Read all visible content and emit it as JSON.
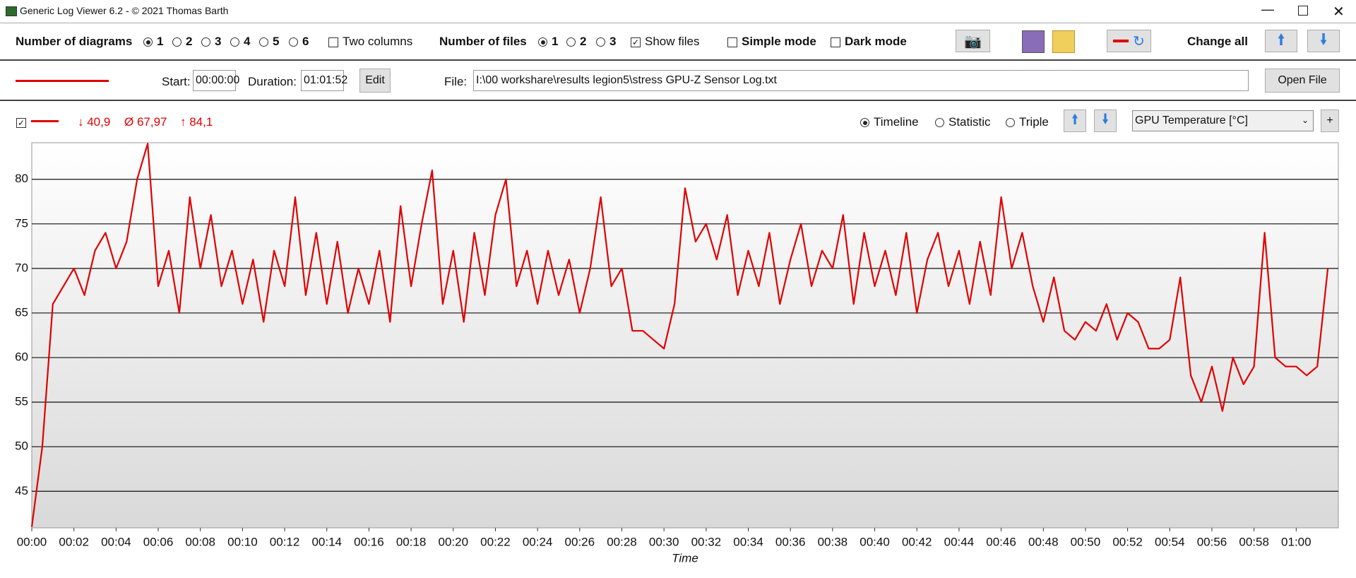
{
  "window": {
    "title": "Generic Log Viewer 6.2 - © 2021 Thomas Barth"
  },
  "toolbar": {
    "diagrams_label": "Number of diagrams",
    "diagram_options": [
      "1",
      "2",
      "3",
      "4",
      "5",
      "6"
    ],
    "two_columns": "Two columns",
    "files_label": "Number of files",
    "file_options": [
      "1",
      "2",
      "3"
    ],
    "show_files": "Show files",
    "simple_mode": "Simple mode",
    "dark_mode": "Dark mode",
    "change_all": "Change all"
  },
  "file_row": {
    "start_label": "Start:",
    "start": "00:00:00",
    "duration_label": "Duration:",
    "duration": "01:01:52",
    "edit": "Edit",
    "file_label": "File:",
    "file_path": "I:\\00 workshare\\results legion5\\stress GPU-Z Sensor Log.txt",
    "open_file": "Open File"
  },
  "chart_header": {
    "min": "↓ 40,9",
    "avg": "Ø 67,97",
    "max": "↑ 84,1",
    "modes": [
      "Timeline",
      "Statistic",
      "Triple"
    ],
    "sensor": "GPU Temperature [°C]",
    "add": "+"
  },
  "chart_data": {
    "type": "line",
    "x_label": "Time",
    "x": [
      0,
      0.5,
      1,
      1.5,
      2,
      2.5,
      3,
      3.5,
      4,
      4.5,
      5,
      5.5,
      6,
      6.5,
      7,
      7.5,
      8,
      8.5,
      9,
      9.5,
      10,
      10.5,
      11,
      11.5,
      12,
      12.5,
      13,
      13.5,
      14,
      14.5,
      15,
      15.5,
      16,
      16.5,
      17,
      17.5,
      18,
      18.5,
      19,
      19.5,
      20,
      20.5,
      21,
      21.5,
      22,
      22.5,
      23,
      23.5,
      24,
      24.5,
      25,
      25.5,
      26,
      26.5,
      27,
      27.5,
      28,
      28.5,
      29,
      29.5,
      30,
      30.5,
      31,
      31.5,
      32,
      32.5,
      33,
      33.5,
      34,
      34.5,
      35,
      35.5,
      36,
      36.5,
      37,
      37.5,
      38,
      38.5,
      39,
      39.5,
      40,
      40.5,
      41,
      41.5,
      42,
      42.5,
      43,
      43.5,
      44,
      44.5,
      45,
      45.5,
      46,
      46.5,
      47,
      47.5,
      48,
      48.5,
      49,
      49.5,
      50,
      50.5,
      51,
      51.5,
      52,
      52.5,
      53,
      53.5,
      54,
      54.5,
      55,
      55.5,
      56,
      56.5,
      57,
      57.5,
      58,
      58.5,
      59,
      59.5,
      60,
      60.5,
      61,
      61.5
    ],
    "series": [
      {
        "color": "#e00000",
        "values": [
          41,
          50,
          66,
          68,
          70,
          67,
          72,
          74,
          70,
          73,
          80,
          84,
          68,
          72,
          65,
          78,
          70,
          76,
          68,
          72,
          66,
          71,
          64,
          72,
          68,
          78,
          67,
          74,
          66,
          73,
          65,
          70,
          66,
          72,
          64,
          77,
          68,
          75,
          81,
          66,
          72,
          64,
          74,
          67,
          76,
          80,
          68,
          72,
          66,
          72,
          67,
          71,
          65,
          70,
          78,
          68,
          70,
          63,
          63,
          62,
          61,
          66,
          79,
          73,
          75,
          71,
          76,
          67,
          72,
          68,
          74,
          66,
          71,
          75,
          68,
          72,
          70,
          76,
          66,
          74,
          68,
          72,
          67,
          74,
          65,
          71,
          74,
          68,
          72,
          66,
          73,
          67,
          78,
          70,
          74,
          68,
          64,
          69,
          63,
          62,
          64,
          63,
          66,
          62,
          65,
          64,
          61,
          61,
          62,
          69,
          58,
          55,
          59,
          54,
          60,
          57,
          59,
          74,
          60,
          59,
          59,
          58,
          59,
          70
        ]
      }
    ],
    "xlim": [
      0,
      62
    ],
    "xticks": [
      {
        "value": 0,
        "label": "00:00"
      },
      {
        "value": 2,
        "label": "00:02"
      },
      {
        "value": 4,
        "label": "00:04"
      },
      {
        "value": 6,
        "label": "00:06"
      },
      {
        "value": 8,
        "label": "00:08"
      },
      {
        "value": 10,
        "label": "00:10"
      },
      {
        "value": 12,
        "label": "00:12"
      },
      {
        "value": 14,
        "label": "00:14"
      },
      {
        "value": 16,
        "label": "00:16"
      },
      {
        "value": 18,
        "label": "00:18"
      },
      {
        "value": 20,
        "label": "00:20"
      },
      {
        "value": 22,
        "label": "00:22"
      },
      {
        "value": 24,
        "label": "00:24"
      },
      {
        "value": 26,
        "label": "00:26"
      },
      {
        "value": 28,
        "label": "00:28"
      },
      {
        "value": 30,
        "label": "00:30"
      },
      {
        "value": 32,
        "label": "00:32"
      },
      {
        "value": 34,
        "label": "00:34"
      },
      {
        "value": 36,
        "label": "00:36"
      },
      {
        "value": 38,
        "label": "00:38"
      },
      {
        "value": 40,
        "label": "00:40"
      },
      {
        "value": 42,
        "label": "00:42"
      },
      {
        "value": 44,
        "label": "00:44"
      },
      {
        "value": 46,
        "label": "00:46"
      },
      {
        "value": 48,
        "label": "00:48"
      },
      {
        "value": 50,
        "label": "00:50"
      },
      {
        "value": 52,
        "label": "00:52"
      },
      {
        "value": 54,
        "label": "00:54"
      },
      {
        "value": 56,
        "label": "00:56"
      },
      {
        "value": 58,
        "label": "00:58"
      },
      {
        "value": 60,
        "label": "01:00"
      }
    ],
    "ylim": [
      40.9,
      84.1
    ],
    "yticks": [
      45,
      50,
      55,
      60,
      65,
      70,
      75,
      80
    ],
    "grid": true
  }
}
